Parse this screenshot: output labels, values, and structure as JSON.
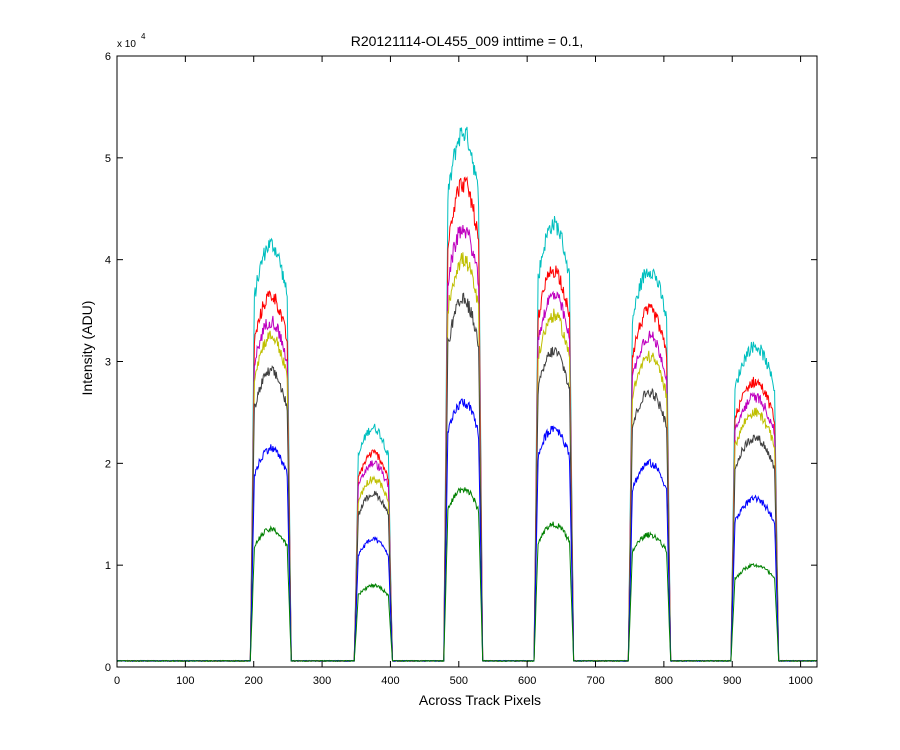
{
  "chart_data": {
    "type": "line",
    "title": "R20121114-OL455_009 inttime = 0.1,",
    "xlabel": "Across Track Pixels",
    "ylabel": "Intensity (ADU)",
    "y_multiplier_base": "x 10",
    "y_multiplier_exp": "4",
    "xlim": [
      0,
      1024
    ],
    "ylim": [
      0,
      60000
    ],
    "xticks": [
      0,
      100,
      200,
      300,
      400,
      500,
      600,
      700,
      800,
      900,
      1000
    ],
    "yticks": [
      0,
      10000,
      20000,
      30000,
      40000,
      50000,
      60000
    ],
    "ytick_labels": [
      "0",
      "1",
      "2",
      "3",
      "4",
      "5",
      "6"
    ],
    "grid": false,
    "legend": "none",
    "baseline": 600,
    "peak_ranges_x": [
      [
        195,
        255
      ],
      [
        347,
        403
      ],
      [
        478,
        535
      ],
      [
        610,
        668
      ],
      [
        748,
        810
      ],
      [
        898,
        968
      ]
    ],
    "series": [
      {
        "color": "#00bfbf",
        "peaks": [
          41500,
          23500,
          52500,
          43500,
          39000,
          31500
        ]
      },
      {
        "color": "#ff0000",
        "peaks": [
          36500,
          21000,
          47500,
          39000,
          35000,
          28000
        ]
      },
      {
        "color": "#bf00bf",
        "peaks": [
          34000,
          20000,
          43000,
          36500,
          32500,
          26500
        ]
      },
      {
        "color": "#bfbf00",
        "peaks": [
          32500,
          18500,
          40000,
          34500,
          30500,
          25000
        ]
      },
      {
        "color": "#404040",
        "peaks": [
          29000,
          17000,
          36000,
          31000,
          27000,
          22500
        ]
      },
      {
        "color": "#0000ff",
        "peaks": [
          21500,
          12500,
          26000,
          23500,
          20000,
          16500
        ]
      },
      {
        "color": "#008000",
        "peaks": [
          13500,
          8000,
          17500,
          14000,
          13000,
          10000
        ]
      }
    ]
  }
}
